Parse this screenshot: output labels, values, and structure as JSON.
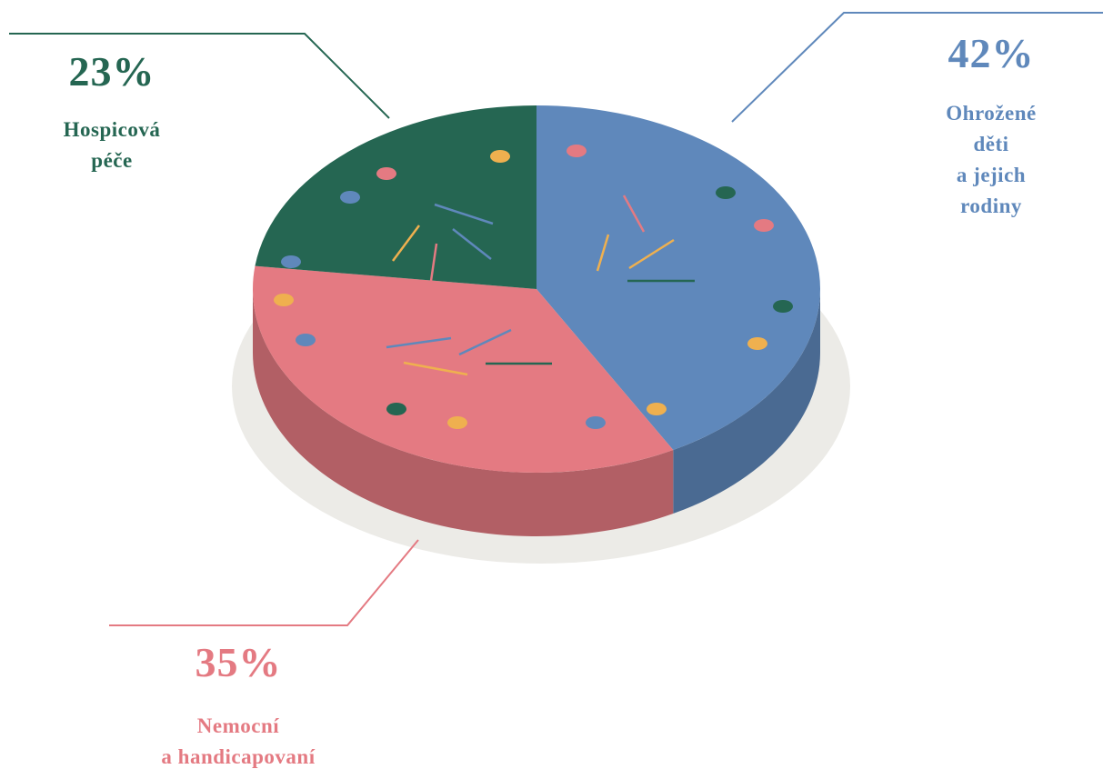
{
  "chart_data": {
    "type": "pie",
    "categories": [
      "Ohrožené děti\na jejich rodiny",
      "Nemocní\na handicapovaní",
      "Hospicová\npéče"
    ],
    "values": [
      42,
      35,
      23
    ],
    "value_labels": [
      "42%",
      "35%",
      "23%"
    ],
    "colors": [
      "#5f88bb",
      "#e47a82",
      "#256652"
    ]
  }
}
